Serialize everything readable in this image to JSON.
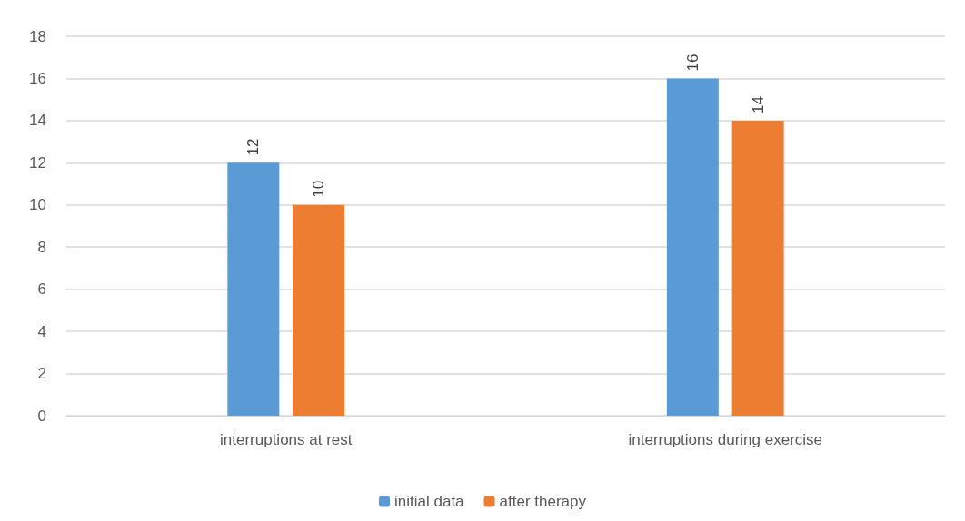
{
  "chart_data": {
    "type": "bar",
    "categories": [
      "interruptions at rest",
      "interruptions during exercise"
    ],
    "series": [
      {
        "name": "initial data",
        "color": "#5b9bd5",
        "values": [
          12,
          16
        ]
      },
      {
        "name": "after therapy",
        "color": "#ed7d31",
        "values": [
          10,
          14
        ]
      }
    ],
    "data_labels": true,
    "ylim": [
      0,
      18
    ],
    "yticks": [
      0,
      2,
      4,
      6,
      8,
      10,
      12,
      14,
      16,
      18
    ],
    "grid": "y",
    "legend": "bottom"
  }
}
